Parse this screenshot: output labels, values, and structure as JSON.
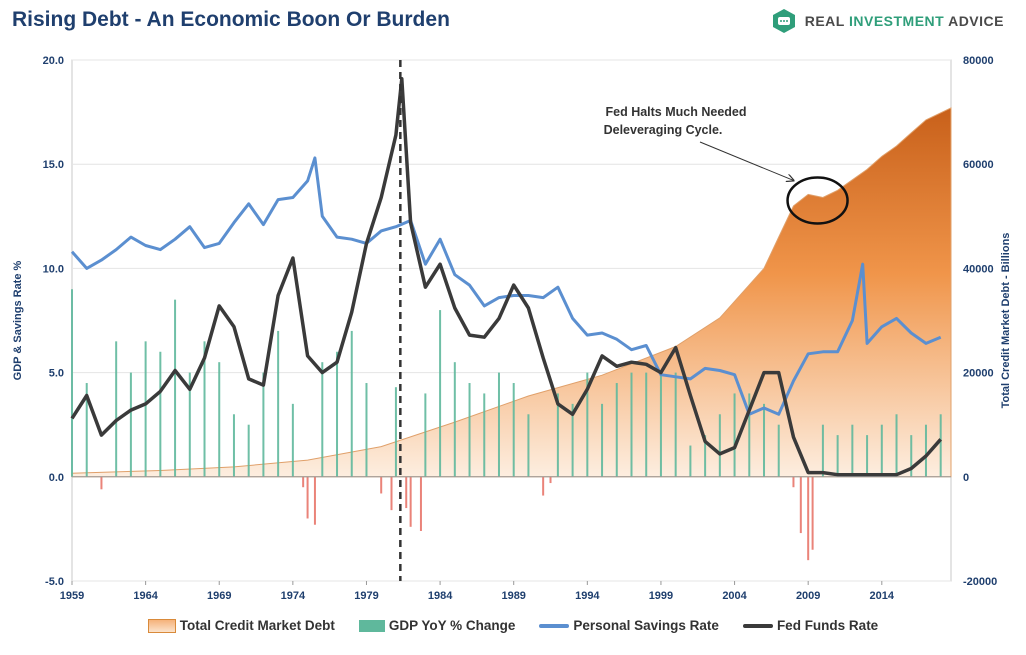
{
  "header": {
    "title": "Rising Debt - An Economic Boon Or Burden",
    "brand_prefix": "REAL ",
    "brand_accent": "INVESTMENT",
    "brand_suffix": " ADVICE"
  },
  "colors": {
    "debt_area_dark": "#d2691e",
    "debt_area_light": "#fbe6d3",
    "gdp_positive": "#5fb89c",
    "gdp_negative": "#e8756a",
    "savings": "#5b8fd0",
    "fedfunds": "#3a3a3a",
    "title": "#1f3f6e"
  },
  "chart_data": {
    "type": "combo",
    "title": "Rising Debt - An Economic Boon Or Burden",
    "ylabel_left": "GDP & Savings Rate %",
    "ylabel_right": "Total Credit Market Debt - Billions",
    "ylim_left": [
      -5,
      20
    ],
    "ylim_right": [
      -20000,
      80000
    ],
    "yticks_left": [
      "20.0",
      "15.0",
      "10.0",
      "5.0",
      "0.0",
      "-5.0"
    ],
    "yticks_right": [
      "80000",
      "60000",
      "40000",
      "20000",
      "0",
      "-20000"
    ],
    "xlim": [
      1959,
      2018.7
    ],
    "xticks": [
      "1959",
      "1964",
      "1969",
      "1974",
      "1979",
      "1984",
      "1989",
      "1994",
      "1999",
      "2004",
      "2009",
      "2014"
    ],
    "grid": true,
    "legend_position": "bottom",
    "vline_year": 1981.3,
    "annotation": {
      "line1": "Fed Halts Much Needed",
      "line2": "Deleveraging Cycle.",
      "target_year": 2009.5,
      "target_value": 54000
    },
    "series": [
      {
        "name": "Total Credit Market Debt",
        "kind": "area",
        "axis": "right",
        "points": [
          [
            1959,
            700
          ],
          [
            1965,
            1200
          ],
          [
            1970,
            1900
          ],
          [
            1975,
            3200
          ],
          [
            1980,
            5800
          ],
          [
            1985,
            10500
          ],
          [
            1990,
            15500
          ],
          [
            1995,
            19500
          ],
          [
            2000,
            25000
          ],
          [
            2003,
            30500
          ],
          [
            2006,
            40000
          ],
          [
            2007,
            46000
          ],
          [
            2008,
            52000
          ],
          [
            2009,
            54200
          ],
          [
            2010,
            53600
          ],
          [
            2011,
            55000
          ],
          [
            2012,
            57000
          ],
          [
            2013,
            59000
          ],
          [
            2014,
            61500
          ],
          [
            2015,
            63500
          ],
          [
            2016,
            66000
          ],
          [
            2017,
            68500
          ],
          [
            2018.7,
            70800
          ]
        ]
      },
      {
        "name": "GDP YoY % Change",
        "kind": "bar",
        "axis": "left",
        "points": [
          [
            1959,
            9.0
          ],
          [
            1960,
            4.5
          ],
          [
            1961,
            -0.6
          ],
          [
            1962,
            6.5
          ],
          [
            1963,
            5.0
          ],
          [
            1964,
            6.5
          ],
          [
            1965,
            6.0
          ],
          [
            1966,
            8.5
          ],
          [
            1967,
            5.0
          ],
          [
            1968,
            6.5
          ],
          [
            1969,
            5.5
          ],
          [
            1970,
            3.0
          ],
          [
            1971,
            2.5
          ],
          [
            1972,
            5.0
          ],
          [
            1973,
            7.0
          ],
          [
            1974,
            3.5
          ],
          [
            1974.7,
            -0.5
          ],
          [
            1975,
            -2.0
          ],
          [
            1975.5,
            -2.3
          ],
          [
            1976,
            5.5
          ],
          [
            1977,
            6.0
          ],
          [
            1978,
            7.0
          ],
          [
            1979,
            4.5
          ],
          [
            1980,
            -0.8
          ],
          [
            1980.7,
            -1.6
          ],
          [
            1981,
            4.3
          ],
          [
            1981.7,
            -1.5
          ],
          [
            1982,
            -2.4
          ],
          [
            1982.7,
            -2.6
          ],
          [
            1983,
            4.0
          ],
          [
            1984,
            8.0
          ],
          [
            1985,
            5.5
          ],
          [
            1986,
            4.5
          ],
          [
            1987,
            4.0
          ],
          [
            1988,
            5.0
          ],
          [
            1989,
            4.5
          ],
          [
            1990,
            3.0
          ],
          [
            1991,
            -0.9
          ],
          [
            1991.5,
            -0.3
          ],
          [
            1992,
            4.0
          ],
          [
            1993,
            3.5
          ],
          [
            1994,
            5.0
          ],
          [
            1995,
            3.5
          ],
          [
            1996,
            4.5
          ],
          [
            1997,
            5.0
          ],
          [
            1998,
            5.0
          ],
          [
            1999,
            5.0
          ],
          [
            2000,
            5.0
          ],
          [
            2001,
            1.5
          ],
          [
            2002,
            2.0
          ],
          [
            2003,
            3.0
          ],
          [
            2004,
            4.0
          ],
          [
            2005,
            4.0
          ],
          [
            2006,
            3.5
          ],
          [
            2007,
            2.5
          ],
          [
            2008,
            -0.5
          ],
          [
            2008.5,
            -2.7
          ],
          [
            2009,
            -4.0
          ],
          [
            2009.3,
            -3.5
          ],
          [
            2010,
            2.5
          ],
          [
            2011,
            2.0
          ],
          [
            2012,
            2.5
          ],
          [
            2013,
            2.0
          ],
          [
            2014,
            2.5
          ],
          [
            2015,
            3.0
          ],
          [
            2016,
            2.0
          ],
          [
            2017,
            2.5
          ],
          [
            2018,
            3.0
          ]
        ]
      },
      {
        "name": "Personal Savings Rate",
        "kind": "line",
        "axis": "left",
        "points": [
          [
            1959,
            10.8
          ],
          [
            1960,
            10.0
          ],
          [
            1961,
            10.4
          ],
          [
            1962,
            10.9
          ],
          [
            1963,
            11.5
          ],
          [
            1964,
            11.1
          ],
          [
            1965,
            10.9
          ],
          [
            1966,
            11.4
          ],
          [
            1967,
            12.0
          ],
          [
            1968,
            11.0
          ],
          [
            1969,
            11.2
          ],
          [
            1970,
            12.2
          ],
          [
            1971,
            13.1
          ],
          [
            1972,
            12.1
          ],
          [
            1973,
            13.3
          ],
          [
            1974,
            13.4
          ],
          [
            1975,
            14.2
          ],
          [
            1975.5,
            15.3
          ],
          [
            1976,
            12.5
          ],
          [
            1977,
            11.5
          ],
          [
            1978,
            11.4
          ],
          [
            1979,
            11.2
          ],
          [
            1980,
            11.8
          ],
          [
            1981,
            12.0
          ],
          [
            1982,
            12.3
          ],
          [
            1983,
            10.2
          ],
          [
            1984,
            11.4
          ],
          [
            1985,
            9.7
          ],
          [
            1986,
            9.2
          ],
          [
            1987,
            8.2
          ],
          [
            1988,
            8.6
          ],
          [
            1989,
            8.7
          ],
          [
            1990,
            8.7
          ],
          [
            1991,
            8.6
          ],
          [
            1992,
            9.1
          ],
          [
            1993,
            7.6
          ],
          [
            1994,
            6.8
          ],
          [
            1995,
            6.9
          ],
          [
            1996,
            6.6
          ],
          [
            1997,
            6.1
          ],
          [
            1998,
            6.3
          ],
          [
            1999,
            4.9
          ],
          [
            2000,
            4.8
          ],
          [
            2001,
            4.7
          ],
          [
            2002,
            5.2
          ],
          [
            2003,
            5.1
          ],
          [
            2004,
            4.9
          ],
          [
            2005,
            3.0
          ],
          [
            2006,
            3.3
          ],
          [
            2007,
            3.0
          ],
          [
            2008,
            4.6
          ],
          [
            2009,
            5.9
          ],
          [
            2010,
            6.0
          ],
          [
            2011,
            6.0
          ],
          [
            2012,
            7.5
          ],
          [
            2012.7,
            10.2
          ],
          [
            2013,
            6.4
          ],
          [
            2014,
            7.2
          ],
          [
            2015,
            7.6
          ],
          [
            2016,
            6.9
          ],
          [
            2017,
            6.4
          ],
          [
            2018,
            6.7
          ]
        ]
      },
      {
        "name": "Fed Funds Rate",
        "kind": "line",
        "axis": "left",
        "points": [
          [
            1959,
            2.8
          ],
          [
            1960,
            3.9
          ],
          [
            1961,
            2.0
          ],
          [
            1962,
            2.7
          ],
          [
            1963,
            3.2
          ],
          [
            1964,
            3.5
          ],
          [
            1965,
            4.1
          ],
          [
            1966,
            5.1
          ],
          [
            1967,
            4.2
          ],
          [
            1968,
            5.7
          ],
          [
            1969,
            8.2
          ],
          [
            1970,
            7.2
          ],
          [
            1971,
            4.7
          ],
          [
            1972,
            4.4
          ],
          [
            1973,
            8.7
          ],
          [
            1974,
            10.5
          ],
          [
            1975,
            5.8
          ],
          [
            1976,
            5.0
          ],
          [
            1977,
            5.5
          ],
          [
            1978,
            7.9
          ],
          [
            1979,
            11.2
          ],
          [
            1980,
            13.4
          ],
          [
            1981,
            16.4
          ],
          [
            1981.4,
            19.1
          ],
          [
            1982,
            12.2
          ],
          [
            1983,
            9.1
          ],
          [
            1984,
            10.2
          ],
          [
            1985,
            8.1
          ],
          [
            1986,
            6.8
          ],
          [
            1987,
            6.7
          ],
          [
            1988,
            7.6
          ],
          [
            1989,
            9.2
          ],
          [
            1990,
            8.1
          ],
          [
            1991,
            5.7
          ],
          [
            1992,
            3.5
          ],
          [
            1993,
            3.0
          ],
          [
            1994,
            4.2
          ],
          [
            1995,
            5.8
          ],
          [
            1996,
            5.3
          ],
          [
            1997,
            5.5
          ],
          [
            1998,
            5.4
          ],
          [
            1999,
            5.0
          ],
          [
            2000,
            6.2
          ],
          [
            2001,
            3.9
          ],
          [
            2002,
            1.7
          ],
          [
            2003,
            1.1
          ],
          [
            2004,
            1.4
          ],
          [
            2005,
            3.2
          ],
          [
            2006,
            5.0
          ],
          [
            2007,
            5.0
          ],
          [
            2008,
            1.9
          ],
          [
            2009,
            0.2
          ],
          [
            2010,
            0.2
          ],
          [
            2011,
            0.1
          ],
          [
            2012,
            0.1
          ],
          [
            2013,
            0.1
          ],
          [
            2014,
            0.1
          ],
          [
            2015,
            0.1
          ],
          [
            2016,
            0.4
          ],
          [
            2017,
            1.0
          ],
          [
            2018,
            1.8
          ]
        ]
      }
    ]
  }
}
